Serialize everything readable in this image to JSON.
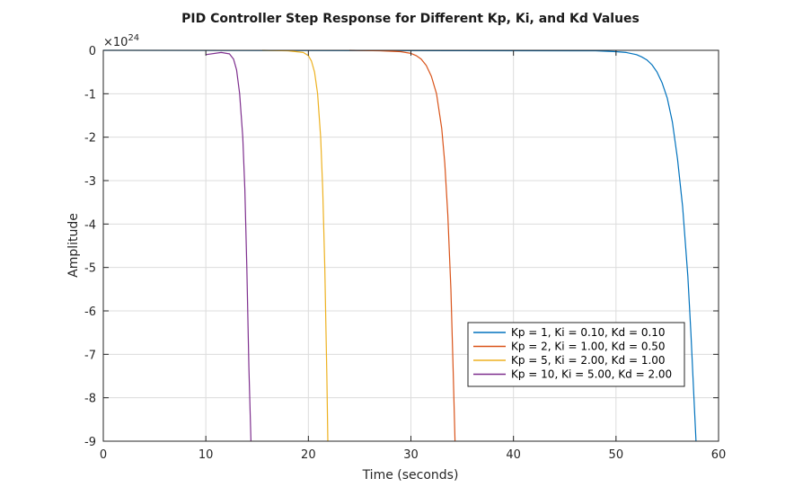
{
  "chart_data": {
    "type": "line",
    "title": "PID Controller Step Response for Different Kp, Ki, and Kd Values",
    "xlabel": "Time (seconds)",
    "ylabel": "Amplitude",
    "y_exponent_base": "×10",
    "y_exponent_power": "24",
    "xlim": [
      0,
      60
    ],
    "ylim": [
      -9,
      0
    ],
    "xticks": [
      0,
      10,
      20,
      30,
      40,
      50,
      60
    ],
    "yticks": [
      0,
      -1,
      -2,
      -3,
      -4,
      -5,
      -6,
      -7,
      -8,
      -9
    ],
    "grid": true,
    "legend_location": "bottom-right",
    "series": [
      {
        "name": "Kp = 1, Ki = 0.10, Kd = 0.10",
        "color": "#0072BD",
        "x": [
          0,
          48,
          50,
          51,
          52,
          52.5,
          53,
          53.5,
          54,
          54.5,
          55,
          55.5,
          56,
          56.5,
          57,
          57.3,
          57.6,
          57.8
        ],
        "y": [
          0,
          -0.01,
          -0.03,
          -0.05,
          -0.1,
          -0.15,
          -0.22,
          -0.33,
          -0.5,
          -0.75,
          -1.1,
          -1.65,
          -2.5,
          -3.6,
          -5.2,
          -6.5,
          -8.0,
          -9.0
        ]
      },
      {
        "name": "Kp = 2, Ki = 1.00, Kd = 0.50",
        "color": "#D95319",
        "x": [
          24,
          27,
          29,
          30,
          30.5,
          31,
          31.5,
          32,
          32.5,
          33,
          33.3,
          33.6,
          33.9,
          34.1,
          34.3
        ],
        "y": [
          0,
          -0.01,
          -0.03,
          -0.07,
          -0.12,
          -0.2,
          -0.35,
          -0.6,
          -1.0,
          -1.8,
          -2.6,
          -3.8,
          -5.5,
          -7.2,
          -9.0
        ]
      },
      {
        "name": "Kp = 5, Ki = 2.00, Kd = 1.00",
        "color": "#EDB120",
        "x": [
          15.5,
          18,
          19.5,
          20,
          20.3,
          20.6,
          20.9,
          21.2,
          21.4,
          21.6,
          21.8,
          21.9
        ],
        "y": [
          0,
          -0.01,
          -0.05,
          -0.12,
          -0.25,
          -0.5,
          -1.0,
          -2.0,
          -3.2,
          -5.0,
          -7.5,
          -9.0
        ]
      },
      {
        "name": "Kp = 10, Ki = 5.00, Kd = 2.00",
        "color": "#7E2F8E",
        "x": [
          10,
          11.5,
          12.3,
          12.7,
          13.0,
          13.3,
          13.6,
          13.8,
          14.0,
          14.2,
          14.4
        ],
        "y": [
          -0.1,
          -0.05,
          -0.08,
          -0.2,
          -0.45,
          -1.0,
          -2.0,
          -3.2,
          -5.0,
          -7.3,
          -9.0
        ]
      }
    ]
  },
  "colors": {
    "axis": "#262626",
    "grid": "#dcdcdc",
    "background": "#ffffff"
  }
}
